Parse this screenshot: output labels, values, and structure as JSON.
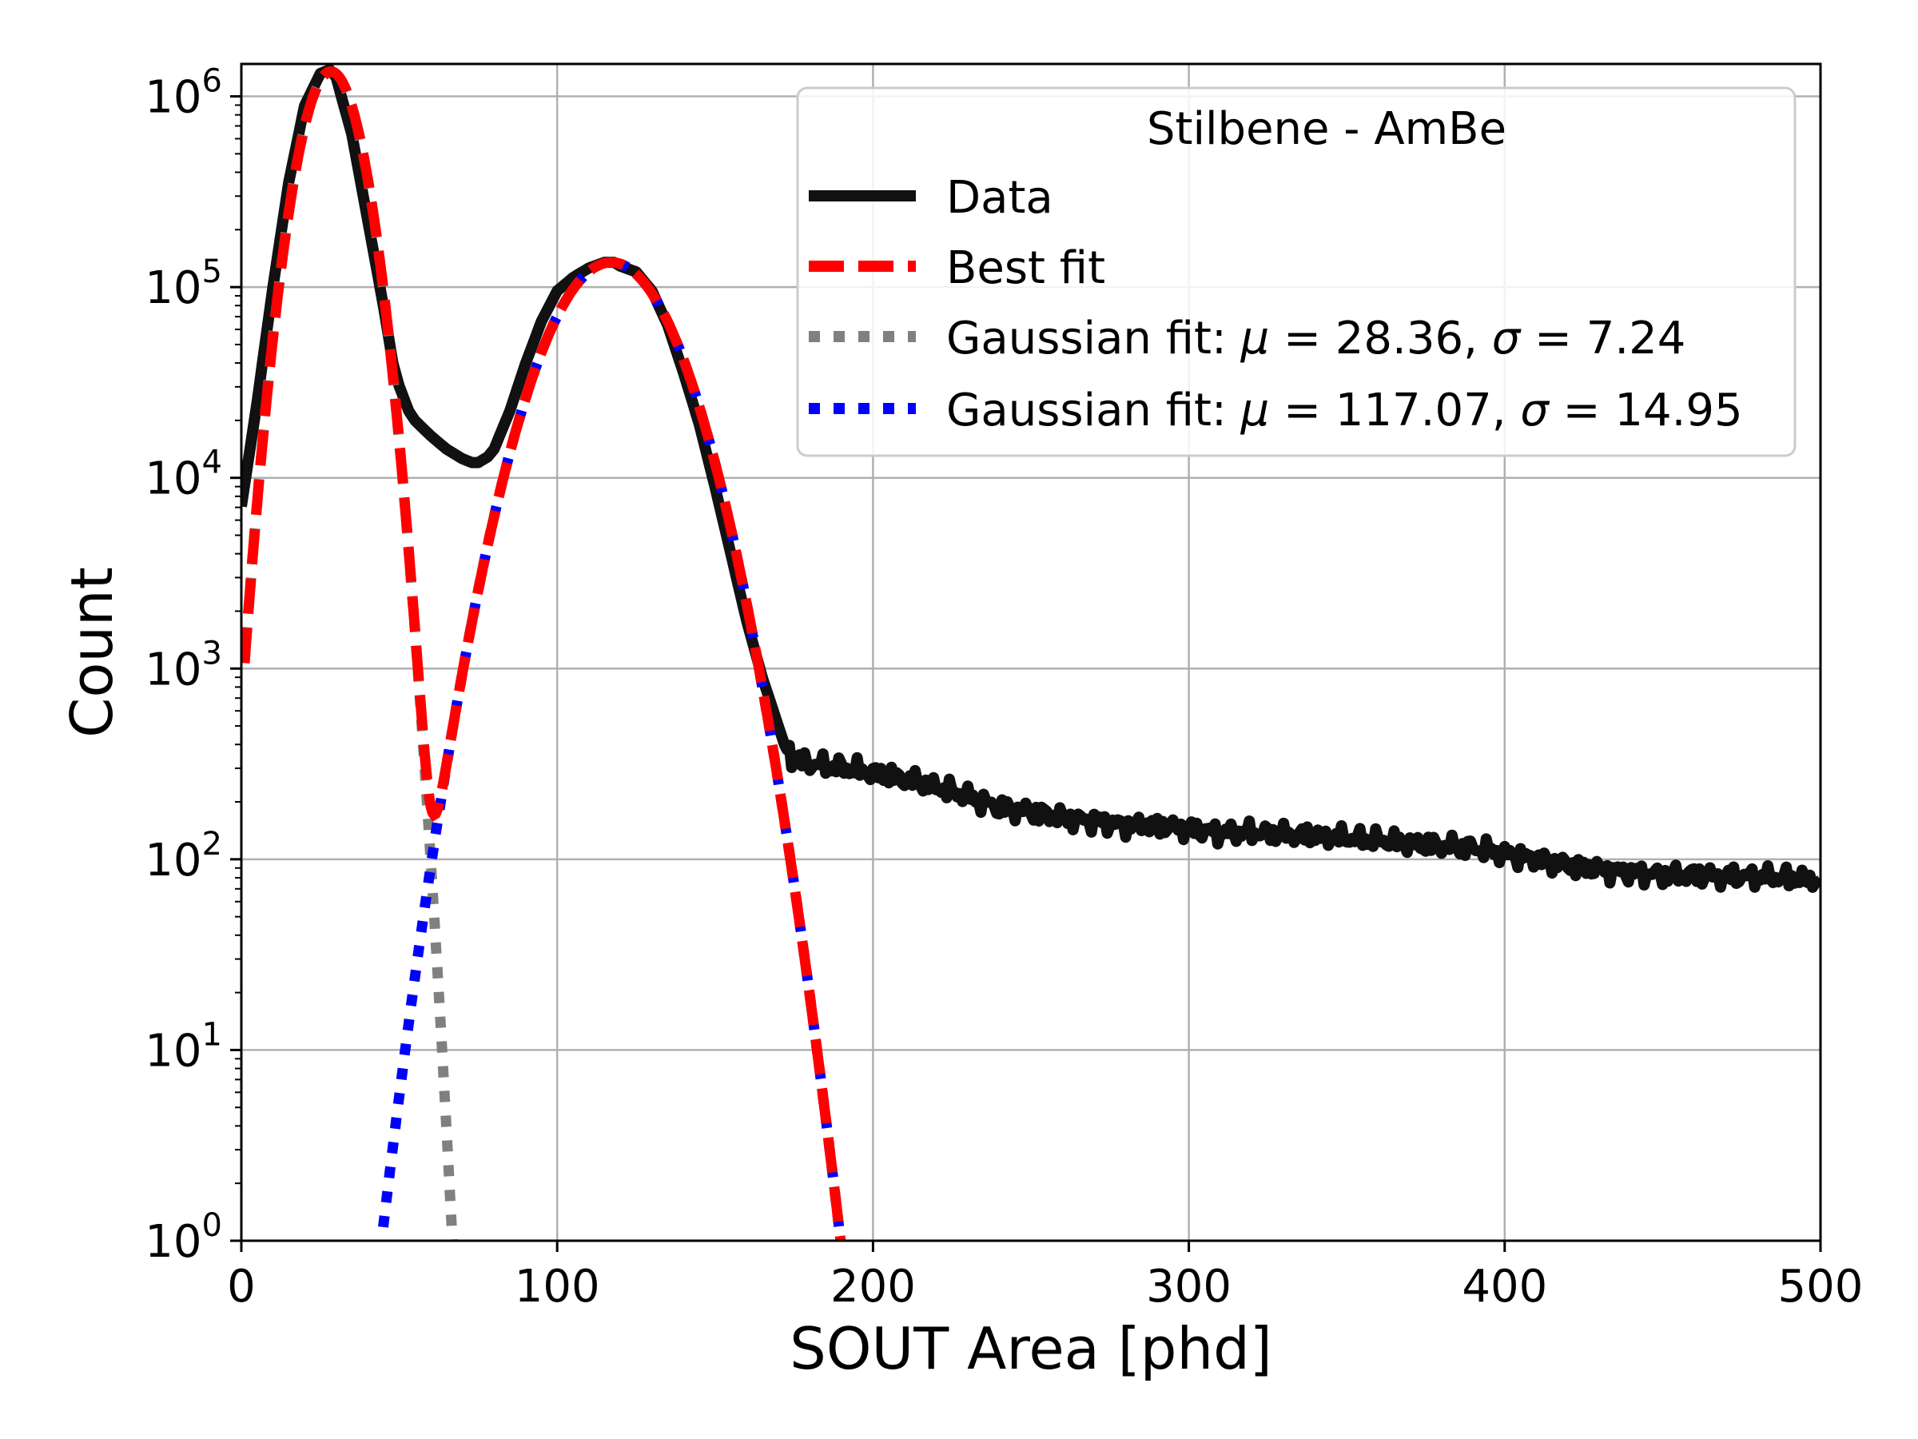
{
  "chart_data": {
    "type": "line",
    "title": "",
    "xlabel": "SOUT Area [phd]",
    "ylabel": "Count",
    "xlim": [
      0,
      500
    ],
    "ylim_log10": [
      0,
      6.17
    ],
    "yscale": "log",
    "grid": true,
    "x_ticks": [
      "0",
      "100",
      "200",
      "300",
      "400",
      "500"
    ],
    "x_tick_values": [
      0,
      100,
      200,
      300,
      400,
      500
    ],
    "y_tick_base": "10",
    "y_tick_exponents": [
      "0",
      "1",
      "2",
      "3",
      "4",
      "5",
      "6"
    ],
    "legend": {
      "title": "Stilbene - AmBe",
      "placement": "top-right",
      "entries": [
        {
          "key": "data",
          "label": "Data",
          "color": "#111111",
          "style": "solid"
        },
        {
          "key": "best",
          "label": "Best fit",
          "color": "#ff0000",
          "style": "dashed"
        },
        {
          "key": "g1",
          "label_prefix": "Gaussian fit: ",
          "mu_symbol": "μ",
          "mu_value": " = 28.36, ",
          "sigma_symbol": "σ",
          "sigma_value": " = 7.24",
          "color": "#808080",
          "style": "dotted"
        },
        {
          "key": "g2",
          "label_prefix": "Gaussian fit: ",
          "mu_symbol": "μ",
          "mu_value": " = 117.07, ",
          "sigma_symbol": "σ",
          "sigma_value": " = 14.95",
          "color": "#0000ff",
          "style": "dotted"
        }
      ]
    },
    "series": [
      {
        "name": "Data",
        "color": "#111111",
        "x": [
          0,
          5,
          10,
          15,
          20,
          25,
          28,
          30,
          35,
          40,
          45,
          48,
          50,
          53,
          55,
          60,
          65,
          70,
          73,
          75,
          78,
          80,
          85,
          90,
          95,
          100,
          105,
          110,
          115,
          118,
          120,
          125,
          130,
          135,
          140,
          145,
          150,
          155,
          160,
          165,
          170,
          172,
          175,
          180,
          190,
          200,
          210,
          220,
          230,
          240,
          250,
          260,
          270,
          280,
          290,
          300,
          310,
          320,
          330,
          340,
          350,
          360,
          370,
          380,
          390,
          400,
          410,
          420,
          430,
          440,
          450,
          460,
          470,
          480,
          490,
          500
        ],
        "log10_y": [
          3.85,
          4.4,
          5.0,
          5.55,
          5.95,
          6.12,
          6.14,
          6.1,
          5.8,
          5.35,
          4.9,
          4.6,
          4.48,
          4.35,
          4.3,
          4.22,
          4.15,
          4.1,
          4.08,
          4.08,
          4.11,
          4.15,
          4.35,
          4.6,
          4.82,
          4.98,
          5.05,
          5.1,
          5.13,
          5.13,
          5.11,
          5.08,
          4.98,
          4.8,
          4.55,
          4.28,
          3.95,
          3.6,
          3.25,
          2.95,
          2.7,
          2.6,
          2.52,
          2.5,
          2.48,
          2.45,
          2.42,
          2.38,
          2.33,
          2.27,
          2.25,
          2.22,
          2.2,
          2.18,
          2.18,
          2.16,
          2.14,
          2.14,
          2.13,
          2.12,
          2.11,
          2.1,
          2.08,
          2.07,
          2.06,
          2.03,
          2.0,
          1.97,
          1.95,
          1.93,
          1.92,
          1.92,
          1.91,
          1.91,
          1.9,
          1.89
        ]
      },
      {
        "name": "Best fit",
        "color": "#ff0000",
        "function": "two_gaussian",
        "components": [
          {
            "mu": 28.36,
            "sigma": 7.24,
            "log10_amp": 6.13
          },
          {
            "mu": 117.07,
            "sigma": 14.95,
            "log10_amp": 5.13
          }
        ],
        "x_range": [
          1,
          191
        ]
      },
      {
        "name": "Gaussian fit: μ = 28.36, σ = 7.24",
        "color": "#808080",
        "function": "gaussian",
        "mu": 28.36,
        "sigma": 7.24,
        "log10_amp": 6.13,
        "x_range": [
          1,
          67
        ]
      },
      {
        "name": "Gaussian fit: μ = 117.07, σ = 14.95",
        "color": "#0000ff",
        "function": "gaussian",
        "mu": 117.07,
        "sigma": 14.95,
        "log10_amp": 5.13,
        "x_range": [
          44,
          191
        ]
      }
    ]
  }
}
